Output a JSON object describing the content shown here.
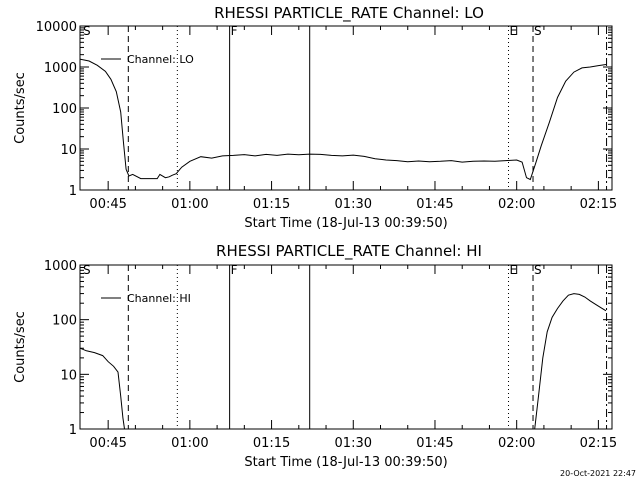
{
  "footer_timestamp": "20-Oct-2021 22:47",
  "chart_data": [
    {
      "type": "line",
      "title": "RHESSI PARTICLE_RATE Channel: LO",
      "xlabel": "Start Time (18-Jul-13 00:39:50)",
      "ylabel": "Counts/sec",
      "yscale": "log",
      "ylim": [
        1,
        10000
      ],
      "xlim": [
        39.83,
        137.5
      ],
      "y_ticks": [
        "1",
        "10",
        "100",
        "1000",
        "10000"
      ],
      "x_ticks": [
        "00:45",
        "01:00",
        "01:15",
        "01:30",
        "01:45",
        "02:00",
        "02:15"
      ],
      "legend": "Channel: LO",
      "legend_position": "upper-left",
      "markers": [
        {
          "label": "S",
          "minute": 40.2,
          "style": "none"
        },
        {
          "label": "",
          "minute": 48.7,
          "style": "dashed"
        },
        {
          "label": "",
          "minute": 57.7,
          "style": "dotted"
        },
        {
          "label": "F",
          "minute": 67.3,
          "style": "solid"
        },
        {
          "label": "",
          "minute": 82.0,
          "style": "solid"
        },
        {
          "label": "E",
          "minute": 118.5,
          "style": "dotted"
        },
        {
          "label": "S",
          "minute": 123.0,
          "style": "dashed"
        },
        {
          "label": "",
          "minute": 136.5,
          "style": "dashdot"
        }
      ],
      "series": [
        {
          "x": [
            39.9,
            41.5,
            43.0,
            44.5,
            45.5,
            46.5,
            47.3,
            47.8,
            48.3,
            48.8,
            49.5,
            51.0,
            52.5,
            54.0,
            54.5,
            55.5,
            56.2,
            56.8,
            57.5,
            58.5,
            60.0,
            62.0,
            64.0,
            66.0,
            68.0,
            70.0,
            72.0,
            74.0,
            76.0,
            78.0,
            80.0,
            82.0,
            84.0,
            86.0,
            88.0,
            90.0,
            92.0,
            94.0,
            96.0,
            98.0,
            100.0,
            102.0,
            104.0,
            106.0,
            108.0,
            110.0,
            112.0,
            114.0,
            116.0,
            118.0,
            120.0,
            121.0,
            121.8,
            122.5,
            123.5,
            124.5,
            126.0,
            127.5,
            129.0,
            130.5,
            132.0,
            133.5,
            135.0,
            136.4
          ],
          "y": [
            1550,
            1400,
            1100,
            780,
            500,
            250,
            80,
            15,
            3.2,
            2.2,
            2.4,
            1.9,
            1.9,
            1.9,
            2.4,
            2.0,
            2.1,
            2.3,
            2.5,
            3.6,
            5.0,
            6.5,
            6.0,
            6.8,
            7.0,
            7.3,
            6.8,
            7.4,
            7.0,
            7.5,
            7.2,
            7.5,
            7.4,
            7.0,
            6.8,
            7.1,
            6.6,
            5.8,
            5.4,
            5.2,
            4.9,
            5.1,
            4.9,
            5.0,
            5.2,
            4.8,
            5.0,
            5.1,
            5.0,
            5.2,
            5.4,
            4.8,
            2.0,
            1.8,
            4.5,
            12,
            45,
            180,
            450,
            750,
            950,
            1000,
            1080,
            1150
          ]
        }
      ]
    },
    {
      "type": "line",
      "title": "RHESSI PARTICLE_RATE Channel: HI",
      "xlabel": "Start Time (18-Jul-13 00:39:50)",
      "ylabel": "Counts/sec",
      "yscale": "log",
      "ylim": [
        1,
        1000
      ],
      "xlim": [
        39.83,
        137.5
      ],
      "y_ticks": [
        "1",
        "10",
        "100",
        "1000"
      ],
      "x_ticks": [
        "00:45",
        "01:00",
        "01:15",
        "01:30",
        "01:45",
        "02:00",
        "02:15"
      ],
      "legend": "Channel: HI",
      "legend_position": "upper-left",
      "markers": [
        {
          "label": "S",
          "minute": 40.2,
          "style": "none"
        },
        {
          "label": "",
          "minute": 48.7,
          "style": "dashed"
        },
        {
          "label": "",
          "minute": 57.7,
          "style": "dotted"
        },
        {
          "label": "F",
          "minute": 67.3,
          "style": "solid"
        },
        {
          "label": "",
          "minute": 82.0,
          "style": "solid"
        },
        {
          "label": "E",
          "minute": 118.5,
          "style": "dotted"
        },
        {
          "label": "S",
          "minute": 123.0,
          "style": "dashed"
        },
        {
          "label": "",
          "minute": 136.5,
          "style": "dashdot"
        }
      ],
      "series": [
        {
          "x": [
            39.9,
            41.0,
            42.5,
            44.0,
            45.0,
            46.0,
            46.8,
            47.3,
            47.7,
            48.0
          ],
          "y": [
            30,
            27,
            25,
            22,
            17,
            14,
            11,
            4,
            1.6,
            1.0
          ]
        },
        {
          "x": [
            123.3,
            124.0,
            124.8,
            125.6,
            126.5,
            127.5,
            128.5,
            129.5,
            130.5,
            131.5,
            132.5,
            133.5,
            134.5,
            135.5,
            136.4
          ],
          "y": [
            1.0,
            4,
            20,
            60,
            110,
            160,
            220,
            280,
            300,
            290,
            260,
            220,
            190,
            165,
            145
          ]
        }
      ]
    }
  ]
}
